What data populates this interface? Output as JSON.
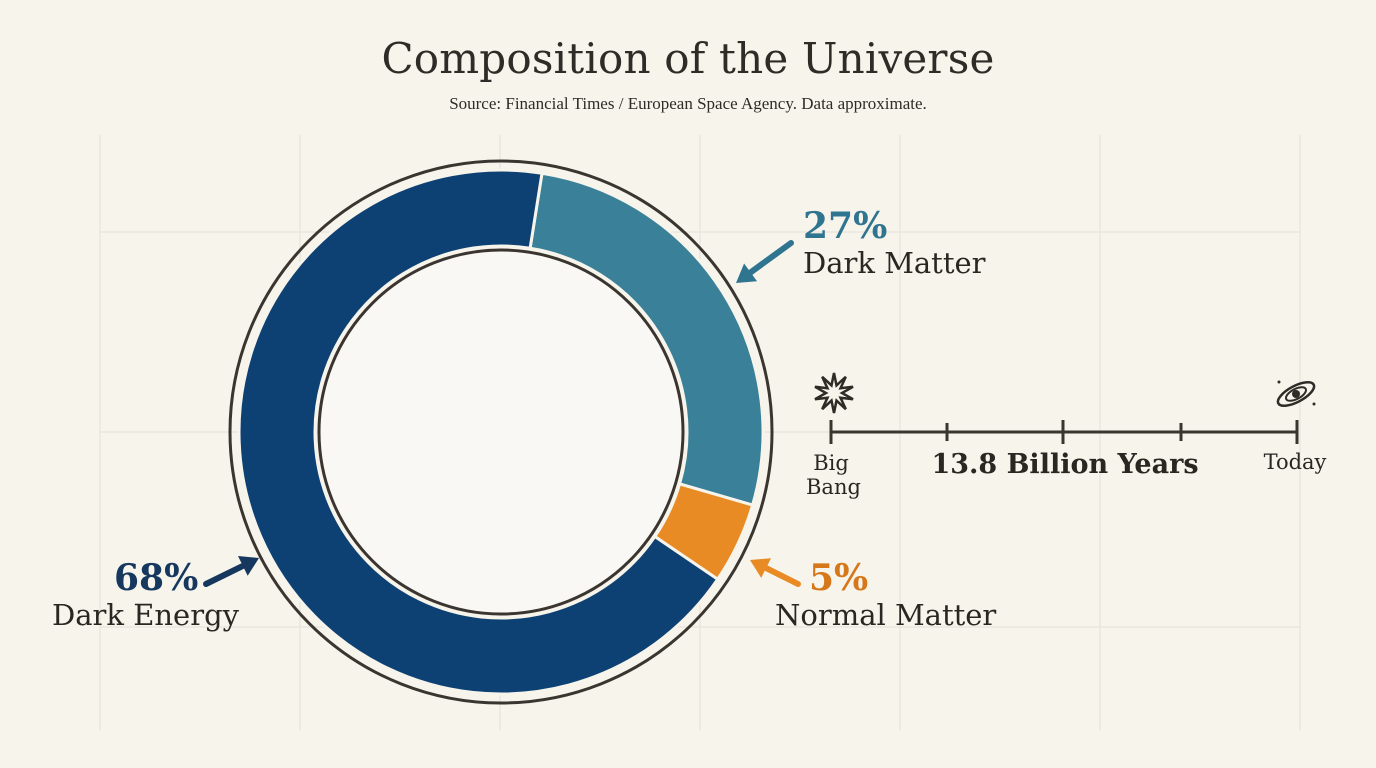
{
  "title": "Composition of the Universe",
  "subtitle": "Source: Financial Times / European Space Agency. Data approximate.",
  "colors": {
    "background": "#f7f4ec",
    "dark_energy": "#0e4173",
    "dark_matter": "#3a8098",
    "normal_matter": "#e98b24",
    "outline": "#3b3530"
  },
  "chart_data": {
    "type": "pie",
    "style": "donut",
    "slices": [
      {
        "label": "Dark Matter",
        "value": 27,
        "value_label": "27%",
        "color": "#3a8098"
      },
      {
        "label": "Normal Matter",
        "value": 5,
        "value_label": "5%",
        "color": "#e98b24"
      },
      {
        "label": "Dark Energy",
        "value": 68,
        "value_label": "68%",
        "color": "#0e4173"
      }
    ]
  },
  "timeline": {
    "start_label": "Big Bang",
    "start_icon": "explosion-icon",
    "middle_label": "13.8 Billion Years",
    "end_label": "Today",
    "end_icon": "galaxy-icon"
  }
}
